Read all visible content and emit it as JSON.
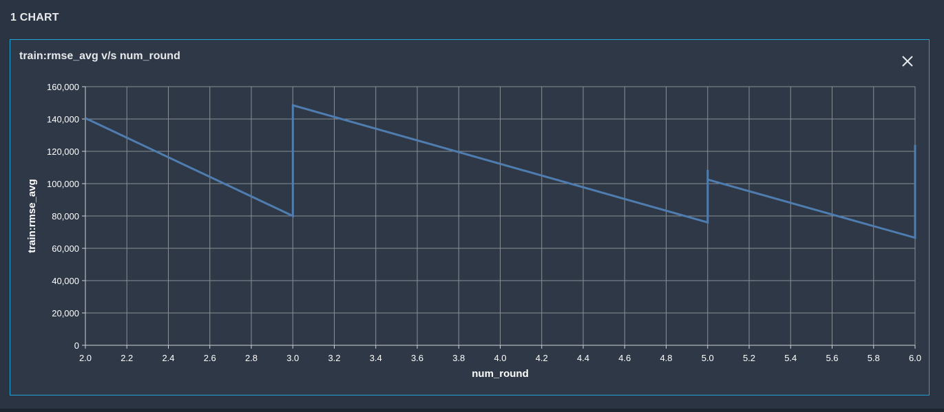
{
  "header": {
    "title": "1 CHART"
  },
  "panel": {
    "title": "train:rmse_avg v/s num_round",
    "close_label": "Close"
  },
  "colors": {
    "line": "#4f7db0",
    "grid": "#8a8f96",
    "axis": "#d0d3d7",
    "text": "#ffffff",
    "border": "#1fa3d6"
  },
  "chart_data": {
    "type": "line",
    "title": "train:rmse_avg v/s num_round",
    "xlabel": "num_round",
    "ylabel": "train:rmse_avg",
    "xlim": [
      2.0,
      6.0
    ],
    "ylim": [
      0,
      160000
    ],
    "x_ticks": [
      "2.0",
      "2.2",
      "2.4",
      "2.6",
      "2.8",
      "3.0",
      "3.2",
      "3.4",
      "3.6",
      "3.8",
      "4.0",
      "4.2",
      "4.4",
      "4.6",
      "4.8",
      "5.0",
      "5.2",
      "5.4",
      "5.6",
      "5.8",
      "6.0"
    ],
    "y_ticks": [
      "0",
      "20,000",
      "40,000",
      "60,000",
      "80,000",
      "100,000",
      "120,000",
      "140,000",
      "160,000"
    ],
    "grid": true,
    "series": [
      {
        "x": [
          2.0,
          3.0,
          3.0,
          3.0,
          5.0,
          5.0,
          5.0,
          5.0,
          6.0,
          6.0
        ],
        "y": [
          140500,
          80000,
          80500,
          148500,
          76000,
          108500,
          101000,
          102500,
          66500,
          124000
        ]
      }
    ]
  }
}
